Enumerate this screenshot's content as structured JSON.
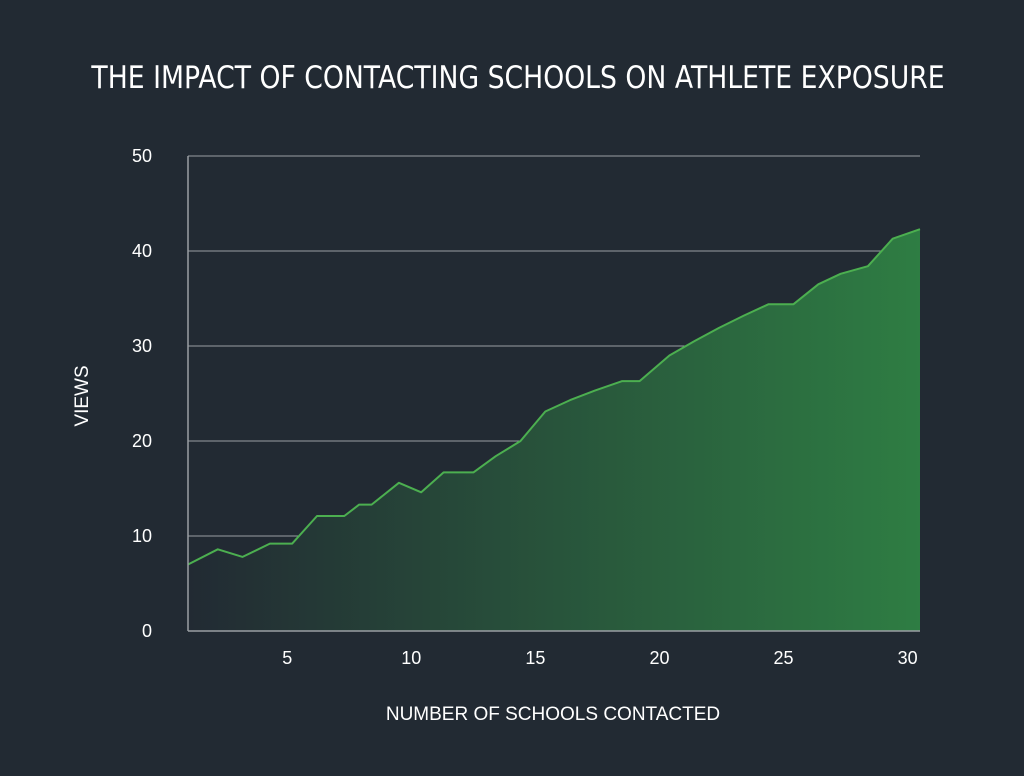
{
  "chart_data": {
    "type": "area",
    "title": "THE IMPACT OF CONTACTING SCHOOLS ON ATHLETE EXPOSURE",
    "xlabel": "NUMBER OF SCHOOLS CONTACTED",
    "ylabel": "VIEWS",
    "xlim": [
      1,
      30.5
    ],
    "ylim": [
      0,
      50
    ],
    "x_ticks": [
      5,
      10,
      15,
      20,
      25,
      30
    ],
    "y_ticks": [
      0,
      10,
      20,
      30,
      40,
      50
    ],
    "grid": true,
    "legend": "none",
    "x": [
      1,
      2.2,
      3.2,
      4.3,
      5.2,
      6.2,
      7.3,
      7.9,
      8.4,
      9.5,
      10.4,
      11.3,
      12.5,
      13.4,
      14.4,
      15.4,
      16.4,
      17.4,
      18.5,
      19.2,
      20.4,
      21.4,
      22.4,
      23.4,
      24.4,
      25.4,
      26.4,
      27.3,
      28.4,
      29.4,
      30.5
    ],
    "values": [
      7,
      8.6,
      7.8,
      9.2,
      9.2,
      12.1,
      12.1,
      13.3,
      13.3,
      15.6,
      14.6,
      16.7,
      16.7,
      18.4,
      20,
      23.1,
      24.3,
      25.3,
      26.3,
      26.3,
      29,
      30.5,
      31.9,
      33.2,
      34.4,
      34.4,
      36.5,
      37.6,
      38.4,
      41.3,
      42.3
    ],
    "colors": {
      "background": "#222a33",
      "line": "#4caf50",
      "area_start": "#222a33",
      "area_end": "#2e7d43",
      "grid": "#9a9ea3",
      "text": "#ffffff"
    }
  }
}
